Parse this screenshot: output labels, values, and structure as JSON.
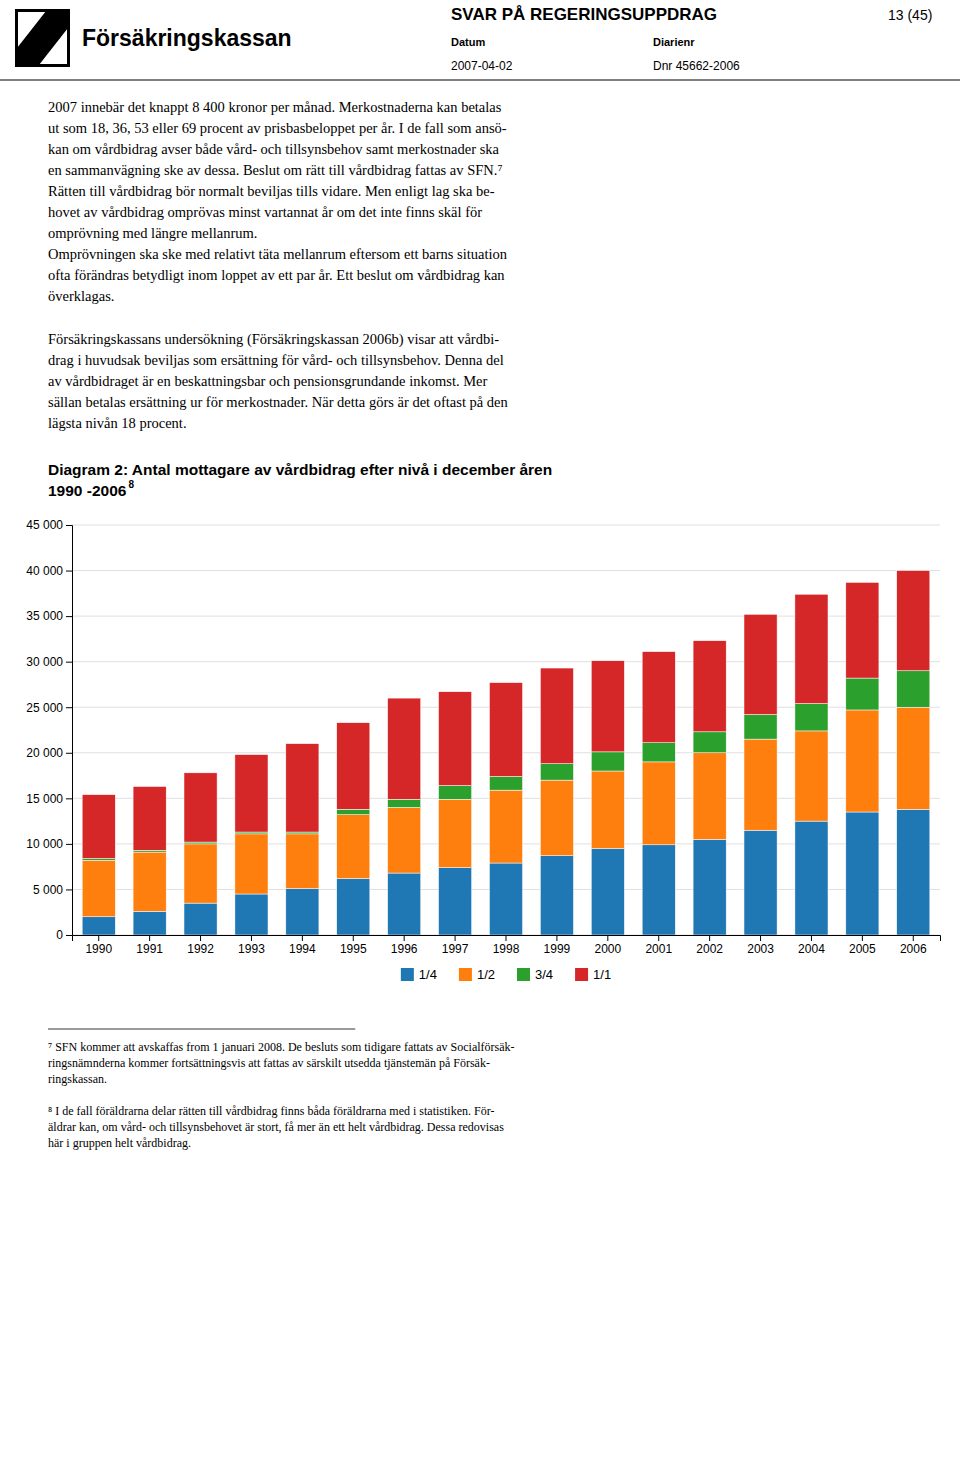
{
  "page": {
    "logo_text": "Försäkringskassan",
    "header_title": "SVAR PÅ REGERINGSUPPDRAG",
    "header_page": "13 (45)",
    "header_date_label": "Datum",
    "header_date": "2007-04-02",
    "header_diarienr_label": "Diarienr",
    "header_diarienr": "Dnr 45662-2006",
    "body_text_1": [
      "2007 innebär det knappt 8 400 kronor per månad. Merkostnaderna kan betalas",
      "ut som 18, 36, 53 eller 69 procent av prisbasbeloppet per år. I de fall som ansö-",
      "kan om vårdbidrag avser både vård- och tillsynsbehov samt merkostnader ska",
      "en sammanvägning ske av dessa. Beslut om rätt till vårdbidrag fattas av SFN.⁷",
      "Rätten till vårdbidrag bör normalt beviljas tills vidare. Men enligt lag ska be-",
      "hovet av vårdbidrag omprövas minst vartannat år om det inte finns skäl för",
      "omprövning med längre mellanrum.",
      "Omprövningen ska ske med relativt täta mellanrum eftersom ett barns situation",
      "ofta förändras betydligt inom loppet av ett par år. Ett beslut om vårdbidrag kan",
      "överklagas."
    ],
    "body_text_2": [
      "Försäkringskassans undersökning (Försäkringskassan 2006b) visar att vårdbi-",
      "drag i huvudsak beviljas som ersättning för vård- och tillsynsbehov. Denna del",
      "av vårdbidraget är en beskattningsbar och pensionsgrundande inkomst. Mer",
      "sällan betalas ersättning ur för merkostnader. När detta görs är det oftast på den",
      "lägsta nivån 18 procent."
    ],
    "footnotes": [
      [
        "⁷ SFN kommer att avskaffas from 1 januari 2008. De besluts som tidigare fattats av Socialförsäk-",
        "ringsnämnderna kommer fortsättningsvis att fattas av särskilt utsedda tjänstemän på Försäk-",
        "ringskassan."
      ],
      [
        "⁸ I de fall föräldrarna delar rätten till vårdbidrag finns båda föräldrarna med i statistiken. För-",
        "äldrar kan, om vård- och tillsynsbehovet är stort, få mer än ett helt vårdbidrag. Dessa redovisas",
        "här i gruppen helt vårdbidrag."
      ]
    ]
  },
  "chart_data": {
    "type": "bar",
    "stacked": true,
    "title": "Diagram 2: Antal mottagare av vårdbidrag efter nivå i december åren",
    "subtitle": "1990 -2006",
    "annotations": [
      "8"
    ],
    "categories": [
      "1990",
      "1991",
      "1992",
      "1993",
      "1994",
      "1995",
      "1996",
      "1997",
      "1998",
      "1999",
      "2000",
      "2001",
      "2002",
      "2003",
      "2004",
      "2005",
      "2006"
    ],
    "series": [
      {
        "name": "1/4",
        "values": [
          2000,
          2600,
          3500,
          4500,
          5100,
          6200,
          6800,
          7400,
          7900,
          8700,
          9500,
          9900,
          10500,
          11500,
          12500,
          13500,
          13800
        ]
      },
      {
        "name": "1/2",
        "values": [
          6200,
          6500,
          6500,
          6600,
          6000,
          7000,
          7200,
          7500,
          8000,
          8300,
          8500,
          9100,
          9500,
          10000,
          9900,
          11200,
          11200
        ]
      },
      {
        "name": "3/4",
        "values": [
          200,
          200,
          200,
          200,
          200,
          600,
          900,
          1500,
          1500,
          1800,
          2100,
          2100,
          2300,
          2700,
          3000,
          3500,
          4000
        ]
      },
      {
        "name": "1/1",
        "values": [
          7000,
          7000,
          7600,
          8500,
          9700,
          9500,
          11100,
          10300,
          10300,
          10500,
          10000,
          10000,
          10000,
          11000,
          12000,
          10500,
          11000
        ]
      }
    ],
    "ylim": [
      0,
      45000
    ],
    "yticks": [
      0,
      {
        "value": 5000,
        "label": "5 000"
      },
      {
        "value": 10000,
        "label": "10 000"
      },
      {
        "value": 15000,
        "label": "15 000"
      },
      {
        "value": 20000,
        "label": "20 000"
      },
      {
        "value": 25000,
        "label": "25 000"
      },
      {
        "value": 30000,
        "label": "30 000"
      },
      {
        "value": 35000,
        "label": "35 000"
      },
      {
        "value": 40000,
        "label": "40 000"
      },
      {
        "value": 45000,
        "label": "45 000"
      }
    ],
    "grid": true,
    "legend": "bottom"
  }
}
